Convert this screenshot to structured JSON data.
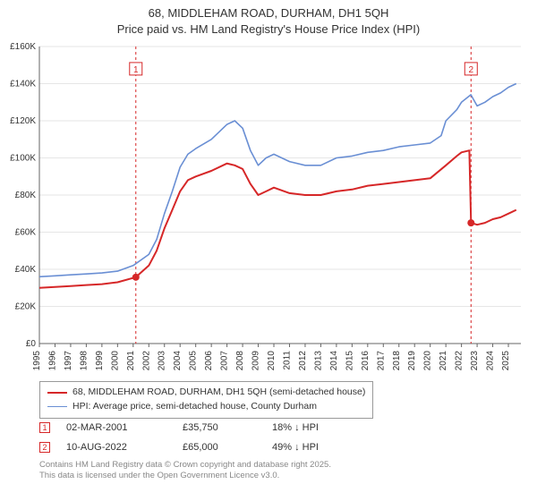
{
  "title_line1": "68, MIDDLEHAM ROAD, DURHAM, DH1 5QH",
  "title_line2": "Price paid vs. HM Land Registry's House Price Index (HPI)",
  "chart": {
    "type": "line",
    "background_color": "#ffffff",
    "grid_color": "#e6e6e6",
    "axis_color": "#666666",
    "tick_fontsize": 10,
    "x_years": [
      1995,
      1996,
      1997,
      1998,
      1999,
      2000,
      2001,
      2002,
      2003,
      2004,
      2005,
      2006,
      2007,
      2008,
      2009,
      2010,
      2011,
      2012,
      2013,
      2014,
      2015,
      2016,
      2017,
      2018,
      2019,
      2020,
      2021,
      2022,
      2023,
      2024,
      2025
    ],
    "y_ticks": [
      0,
      20000,
      40000,
      60000,
      80000,
      100000,
      120000,
      140000,
      160000
    ],
    "y_tick_labels": [
      "£0",
      "£20K",
      "£40K",
      "£60K",
      "£80K",
      "£100K",
      "£120K",
      "£140K",
      "£160K"
    ],
    "ylim": [
      0,
      160000
    ],
    "xlim": [
      1995,
      2025.8
    ],
    "series": [
      {
        "id": "subject",
        "label": "68, MIDDLEHAM ROAD, DURHAM, DH1 5QH (semi-detached house)",
        "color": "#d62728",
        "line_width": 2.0,
        "points": [
          [
            1995,
            30000
          ],
          [
            1996,
            30500
          ],
          [
            1997,
            31000
          ],
          [
            1998,
            31500
          ],
          [
            1999,
            32000
          ],
          [
            2000,
            33000
          ],
          [
            2001.17,
            35750
          ],
          [
            2002,
            42000
          ],
          [
            2002.5,
            50000
          ],
          [
            2003,
            62000
          ],
          [
            2003.5,
            72000
          ],
          [
            2004,
            82000
          ],
          [
            2004.5,
            88000
          ],
          [
            2005,
            90000
          ],
          [
            2006,
            93000
          ],
          [
            2007,
            97000
          ],
          [
            2007.5,
            96000
          ],
          [
            2008,
            94000
          ],
          [
            2008.5,
            86000
          ],
          [
            2009,
            80000
          ],
          [
            2009.5,
            82000
          ],
          [
            2010,
            84000
          ],
          [
            2011,
            81000
          ],
          [
            2012,
            80000
          ],
          [
            2013,
            80000
          ],
          [
            2014,
            82000
          ],
          [
            2015,
            83000
          ],
          [
            2016,
            85000
          ],
          [
            2017,
            86000
          ],
          [
            2018,
            87000
          ],
          [
            2019,
            88000
          ],
          [
            2020,
            89000
          ],
          [
            2021,
            96000
          ],
          [
            2021.7,
            101000
          ],
          [
            2022,
            103000
          ],
          [
            2022.5,
            104000
          ],
          [
            2022.61,
            65000
          ],
          [
            2023,
            64000
          ],
          [
            2023.5,
            65000
          ],
          [
            2024,
            67000
          ],
          [
            2024.5,
            68000
          ],
          [
            2025,
            70000
          ],
          [
            2025.5,
            72000
          ]
        ]
      },
      {
        "id": "hpi",
        "label": "HPI: Average price, semi-detached house, County Durham",
        "color": "#6a8fd4",
        "line_width": 1.6,
        "points": [
          [
            1995,
            36000
          ],
          [
            1996,
            36500
          ],
          [
            1997,
            37000
          ],
          [
            1998,
            37500
          ],
          [
            1999,
            38000
          ],
          [
            2000,
            39000
          ],
          [
            2001,
            42000
          ],
          [
            2002,
            48000
          ],
          [
            2002.5,
            56000
          ],
          [
            2003,
            70000
          ],
          [
            2003.5,
            82000
          ],
          [
            2004,
            95000
          ],
          [
            2004.5,
            102000
          ],
          [
            2005,
            105000
          ],
          [
            2006,
            110000
          ],
          [
            2007,
            118000
          ],
          [
            2007.5,
            120000
          ],
          [
            2008,
            116000
          ],
          [
            2008.5,
            104000
          ],
          [
            2009,
            96000
          ],
          [
            2009.5,
            100000
          ],
          [
            2010,
            102000
          ],
          [
            2011,
            98000
          ],
          [
            2012,
            96000
          ],
          [
            2013,
            96000
          ],
          [
            2014,
            100000
          ],
          [
            2015,
            101000
          ],
          [
            2016,
            103000
          ],
          [
            2017,
            104000
          ],
          [
            2018,
            106000
          ],
          [
            2019,
            107000
          ],
          [
            2020,
            108000
          ],
          [
            2020.7,
            112000
          ],
          [
            2021,
            120000
          ],
          [
            2021.7,
            126000
          ],
          [
            2022,
            130000
          ],
          [
            2022.6,
            134000
          ],
          [
            2023,
            128000
          ],
          [
            2023.5,
            130000
          ],
          [
            2024,
            133000
          ],
          [
            2024.5,
            135000
          ],
          [
            2025,
            138000
          ],
          [
            2025.5,
            140000
          ]
        ]
      }
    ],
    "sale_markers": [
      {
        "n": "1",
        "x": 2001.17,
        "y": 35750,
        "label_y": 148000
      },
      {
        "n": "2",
        "x": 2022.61,
        "y": 65000,
        "label_y": 148000
      }
    ],
    "marker_box_border": "#d62728",
    "marker_box_text": "#d62728",
    "marker_line_color": "#d62728",
    "marker_line_dash": "3,3"
  },
  "legend": {
    "border_color": "#999999",
    "items": [
      {
        "color": "#d62728",
        "width": 2.5,
        "label": "68, MIDDLEHAM ROAD, DURHAM, DH1 5QH (semi-detached house)"
      },
      {
        "color": "#6a8fd4",
        "width": 1.8,
        "label": "HPI: Average price, semi-detached house, County Durham"
      }
    ]
  },
  "data_points": [
    {
      "n": "1",
      "date": "02-MAR-2001",
      "price": "£35,750",
      "delta": "18% ↓ HPI"
    },
    {
      "n": "2",
      "date": "10-AUG-2022",
      "price": "£65,000",
      "delta": "49% ↓ HPI"
    }
  ],
  "footer_line1": "Contains HM Land Registry data © Crown copyright and database right 2025.",
  "footer_line2": "This data is licensed under the Open Government Licence v3.0."
}
